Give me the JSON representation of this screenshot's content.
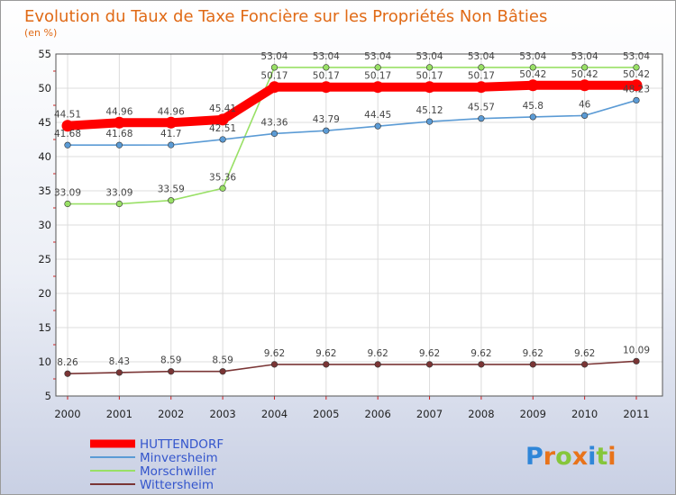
{
  "chart_data": {
    "type": "line",
    "title": "Evolution du Taux de Taxe Foncière sur les Propriétés Non Bâties",
    "ylabel": "(en %)",
    "xlabel": "",
    "ylim": [
      5,
      55
    ],
    "yticks": [
      "5",
      "10",
      "15",
      "20",
      "25",
      "30",
      "35",
      "40",
      "45",
      "50",
      "55"
    ],
    "categories": [
      "2000",
      "2001",
      "2002",
      "2003",
      "2004",
      "2005",
      "2006",
      "2007",
      "2008",
      "2009",
      "2010",
      "2011"
    ],
    "grid": true,
    "legend_position": "bottom-left",
    "series": [
      {
        "name": "HUTTENDORF",
        "color": "#ff0000",
        "values": [
          44.51,
          44.96,
          44.96,
          45.41,
          50.17,
          50.17,
          50.17,
          50.17,
          50.17,
          50.42,
          50.42,
          50.42
        ],
        "labels": [
          "44.51",
          "44.96",
          "44.96",
          "45.41",
          "50.17",
          "50.17",
          "50.17",
          "50.17",
          "50.17",
          "50.42",
          "50.42",
          "50.42"
        ]
      },
      {
        "name": "Minversheim",
        "color": "#5b9bd5",
        "values": [
          41.68,
          41.68,
          41.7,
          42.51,
          43.36,
          43.79,
          44.45,
          45.12,
          45.57,
          45.8,
          46,
          48.23
        ],
        "labels": [
          "41.68",
          "41.68",
          "41.7",
          "42.51",
          "43.36",
          "43.79",
          "44.45",
          "45.12",
          "45.57",
          "45.8",
          "46",
          "48.23"
        ]
      },
      {
        "name": "Morschwiller",
        "color": "#99e066",
        "values": [
          33.09,
          33.09,
          33.59,
          35.36,
          53.04,
          53.04,
          53.04,
          53.04,
          53.04,
          53.04,
          53.04,
          53.04
        ],
        "labels": [
          "33.09",
          "33.09",
          "33.59",
          "35.36",
          "53.04",
          "53.04",
          "53.04",
          "53.04",
          "53.04",
          "53.04",
          "53.04",
          "53.04"
        ]
      },
      {
        "name": "Wittersheim",
        "color": "#7a3535",
        "values": [
          8.26,
          8.43,
          8.59,
          8.59,
          9.62,
          9.62,
          9.62,
          9.62,
          9.62,
          9.62,
          9.62,
          10.09
        ],
        "labels": [
          "8.26",
          "8.43",
          "8.59",
          "8.59",
          "9.62",
          "9.62",
          "9.62",
          "9.62",
          "9.62",
          "9.62",
          "9.62",
          "10.09"
        ]
      }
    ]
  },
  "brand": {
    "letters": [
      "P",
      "r",
      "o",
      "x",
      "i",
      "t",
      "i"
    ],
    "colors": [
      "#2f86d8",
      "#e8731a",
      "#86c63b",
      "#e8731a",
      "#2f86d8",
      "#86c63b",
      "#e8731a"
    ]
  }
}
